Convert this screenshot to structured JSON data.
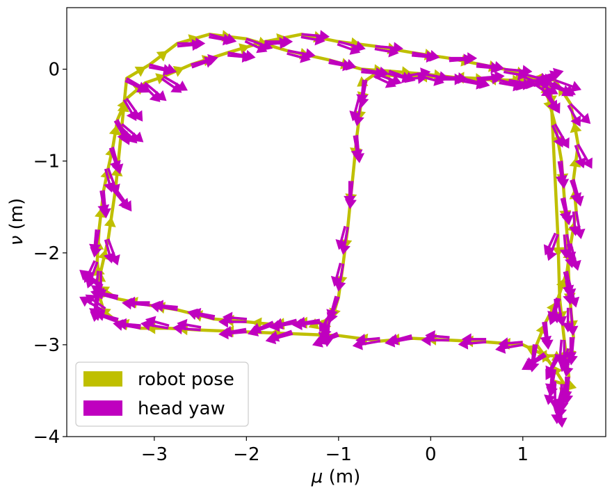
{
  "chart_data": {
    "type": "line",
    "xlabel_sym": "μ",
    "xlabel_unit": " (m)",
    "ylabel_sym": "ν",
    "ylabel_unit": " (m)",
    "xlim": [
      -3.95,
      1.9
    ],
    "ylim": [
      -4.0,
      0.67
    ],
    "xticks": [
      -3,
      -2,
      -1,
      0,
      1
    ],
    "yticks": [
      0,
      -1,
      -2,
      -3,
      -4
    ],
    "xtick_labels": [
      "−3",
      "−2",
      "−1",
      "0",
      "1"
    ],
    "ytick_labels": [
      "0",
      "−1",
      "−2",
      "−3",
      "−4"
    ],
    "grid": false,
    "legend_position": "lower-left",
    "series": [
      {
        "name": "robot pose",
        "color": "#bfbf00",
        "x": [
          1.35,
          1.45,
          1.35,
          1.15,
          1.25,
          1.38,
          1.48,
          1.52,
          1.58,
          1.55,
          1.6,
          1.52,
          1.35,
          1.15,
          0.85,
          0.5,
          0.1,
          -0.3,
          -0.6,
          -0.7,
          -0.75,
          -0.8,
          -0.85,
          -0.9,
          -0.95,
          -1.0,
          -1.05,
          -1.1,
          -1.2,
          -1.45,
          -1.7,
          -2.0,
          -2.35,
          -2.75,
          -3.05,
          -3.4,
          -3.58,
          -3.62,
          -3.6,
          -3.55,
          -3.5,
          -3.45,
          -3.4,
          -3.3,
          -3.1,
          -2.9,
          -2.6,
          -2.2,
          -1.8,
          -1.4,
          -1.0,
          -0.6,
          -0.2,
          0.2,
          0.5,
          0.8,
          1.0,
          1.12,
          1.25,
          1.35,
          1.42,
          1.45,
          1.48,
          1.5,
          1.52,
          1.55,
          1.52,
          1.4,
          1.25,
          1.0,
          0.6,
          0.2,
          -0.2,
          -0.55,
          -1.0,
          -1.5,
          -2.0,
          -2.5,
          -2.85,
          -3.15,
          -3.4,
          -3.55,
          -3.6,
          -3.58,
          -3.5,
          -3.42,
          -3.35,
          -3.3,
          -3.05,
          -2.75,
          -2.4,
          -2.0,
          -1.55,
          -1.1,
          -0.75,
          -0.45,
          -0.1,
          0.35,
          0.75,
          1.05,
          1.3,
          1.38,
          1.4,
          1.45,
          1.5,
          1.45,
          1.4
        ],
        "y": [
          -3.4,
          -3.43,
          -3.27,
          -3.0,
          -2.75,
          -2.5,
          -2.2,
          -1.9,
          -1.55,
          -1.2,
          -0.82,
          -0.38,
          -0.12,
          -0.1,
          -0.12,
          -0.1,
          -0.08,
          -0.08,
          -0.05,
          -0.12,
          -0.32,
          -0.72,
          -1.22,
          -1.72,
          -2.12,
          -2.48,
          -2.65,
          -2.72,
          -2.76,
          -2.76,
          -2.78,
          -2.75,
          -2.72,
          -2.62,
          -2.57,
          -2.5,
          -2.38,
          -2.1,
          -1.75,
          -1.32,
          -1.08,
          -0.85,
          -0.55,
          -0.32,
          -0.15,
          -0.08,
          0.05,
          0.18,
          0.3,
          0.38,
          0.3,
          0.25,
          0.18,
          0.12,
          0.06,
          0.0,
          -0.05,
          -0.12,
          -0.22,
          -0.6,
          -1.0,
          -1.4,
          -1.8,
          -2.3,
          -2.6,
          -2.92,
          -3.05,
          -3.12,
          -3.12,
          -3.0,
          -2.97,
          -2.95,
          -2.93,
          -2.96,
          -2.9,
          -2.88,
          -2.86,
          -2.84,
          -2.82,
          -2.82,
          -2.75,
          -2.63,
          -2.45,
          -2.2,
          -1.85,
          -1.3,
          -0.6,
          -0.1,
          0.05,
          0.28,
          0.38,
          0.33,
          0.2,
          0.1,
          0.0,
          -0.02,
          -0.05,
          -0.1,
          -0.12,
          -0.13,
          -0.15,
          -1.8,
          -2.5,
          -2.95,
          -3.35,
          -3.5,
          -3.6
        ]
      },
      {
        "name": "head yaw",
        "color": "#bf00bf",
        "x": [
          1.35,
          1.45,
          1.35,
          1.15,
          1.25,
          1.38,
          1.48,
          1.52,
          1.58,
          1.55,
          1.6,
          1.52,
          1.35,
          1.15,
          0.85,
          0.5,
          0.1,
          -0.3,
          -0.6,
          -0.7,
          -0.75,
          -0.8,
          -0.85,
          -0.9,
          -0.95,
          -1.0,
          -1.05,
          -1.1,
          -1.2,
          -1.45,
          -1.7,
          -2.0,
          -2.35,
          -2.75,
          -3.05,
          -3.4,
          -3.58,
          -3.62,
          -3.6,
          -3.55,
          -3.5,
          -3.45,
          -3.4,
          -3.3,
          -3.1,
          -2.9,
          -2.6,
          -2.2,
          -1.8,
          -1.4,
          -1.0,
          -0.6,
          -0.2,
          0.2,
          0.5,
          0.8,
          1.0,
          1.12,
          1.25,
          1.35,
          1.42,
          1.45,
          1.48,
          1.5,
          1.52,
          1.55,
          1.52,
          1.4,
          1.25,
          1.0,
          0.6,
          0.2,
          -0.2,
          -0.55,
          -1.0,
          -1.5,
          -2.0,
          -2.5,
          -2.85,
          -3.15,
          -3.4,
          -3.55,
          -3.6,
          -3.58,
          -3.5,
          -3.42,
          -3.35,
          -3.3,
          -3.05,
          -2.75,
          -2.4,
          -2.0,
          -1.55,
          -1.1,
          -0.75,
          -0.45,
          -0.1,
          0.35,
          0.75,
          1.05,
          1.3,
          1.38,
          1.4,
          1.45,
          1.5,
          1.45,
          1.4
        ],
        "y": [
          -3.4,
          -3.43,
          -3.27,
          -3.0,
          -2.75,
          -2.5,
          -2.2,
          -1.9,
          -1.55,
          -1.2,
          -0.82,
          -0.38,
          -0.12,
          -0.1,
          -0.12,
          -0.1,
          -0.08,
          -0.08,
          -0.05,
          -0.12,
          -0.32,
          -0.72,
          -1.22,
          -1.72,
          -2.12,
          -2.48,
          -2.65,
          -2.72,
          -2.76,
          -2.76,
          -2.78,
          -2.75,
          -2.72,
          -2.62,
          -2.57,
          -2.5,
          -2.38,
          -2.1,
          -1.75,
          -1.32,
          -1.08,
          -0.85,
          -0.55,
          -0.32,
          -0.15,
          -0.08,
          0.05,
          0.18,
          0.3,
          0.38,
          0.3,
          0.25,
          0.18,
          0.12,
          0.06,
          0.0,
          -0.05,
          -0.12,
          -0.22,
          -0.6,
          -1.0,
          -1.4,
          -1.8,
          -2.3,
          -2.6,
          -2.92,
          -3.05,
          -3.12,
          -3.12,
          -3.0,
          -2.97,
          -2.95,
          -2.93,
          -2.96,
          -2.9,
          -2.88,
          -2.86,
          -2.84,
          -2.82,
          -2.82,
          -2.75,
          -2.63,
          -2.45,
          -2.2,
          -1.85,
          -1.3,
          -0.6,
          -0.1,
          0.05,
          0.28,
          0.38,
          0.33,
          0.2,
          0.1,
          0.0,
          -0.02,
          -0.05,
          -0.1,
          -0.12,
          -0.13,
          -0.15,
          -1.8,
          -2.5,
          -2.95,
          -3.35,
          -3.5,
          -3.6
        ],
        "yaw_deg": [
          -90,
          -95,
          -100,
          -100,
          -85,
          -80,
          -80,
          -75,
          -80,
          -75,
          -60,
          -45,
          -20,
          15,
          -10,
          5,
          -5,
          10,
          -20,
          -100,
          -100,
          -85,
          -95,
          -100,
          -100,
          -110,
          -115,
          -95,
          -175,
          -170,
          -160,
          180,
          165,
          170,
          175,
          165,
          140,
          -110,
          -100,
          -85,
          -70,
          -75,
          -65,
          -55,
          -40,
          -30,
          15,
          -10,
          0,
          -5,
          -15,
          -5,
          -10,
          0,
          -10,
          -5,
          -15,
          -30,
          -60,
          -60,
          -85,
          -80,
          -80,
          -75,
          -85,
          -95,
          -100,
          -120,
          -150,
          -170,
          -175,
          -180,
          -170,
          -170,
          -160,
          -165,
          -175,
          175,
          170,
          170,
          160,
          150,
          -100,
          -90,
          -70,
          -55,
          -40,
          -30,
          -15,
          0,
          -15,
          -20,
          -10,
          -15,
          -10,
          -20,
          -10,
          -15,
          -15,
          5,
          -25,
          -110,
          -110,
          -90,
          -95,
          -100,
          -85
        ],
        "yaw_alt_deg": [
          -100,
          -90,
          -95,
          -95,
          -80,
          -85,
          -75,
          -80,
          -85,
          -70,
          -70,
          -60,
          -35,
          20,
          -5,
          10,
          0,
          5,
          -25,
          -95,
          -105,
          -80,
          -90,
          -105,
          -105,
          -105,
          -120,
          -100,
          -170,
          -165,
          -155,
          175,
          170,
          175,
          180,
          170,
          145,
          -115,
          -95,
          -80,
          -75,
          -70,
          -60,
          -60,
          -45,
          -35,
          20,
          -5,
          5,
          -10,
          -20,
          -10,
          -5,
          5,
          -5,
          -10,
          -20,
          -35,
          -55,
          -65,
          -80,
          -75,
          -85,
          -80,
          -90,
          -90,
          -105,
          -115,
          -145,
          -175,
          -180,
          175,
          -165,
          -175,
          -155,
          -160,
          -170,
          170,
          165,
          175,
          165,
          145,
          -95,
          -95,
          -75,
          -50,
          -45,
          -25,
          -10,
          5,
          -10,
          -25,
          -15,
          -10,
          -5,
          -15,
          -15,
          -10,
          -10,
          0,
          -20,
          -115,
          -105,
          -95,
          -90,
          -105,
          -90
        ]
      }
    ]
  }
}
